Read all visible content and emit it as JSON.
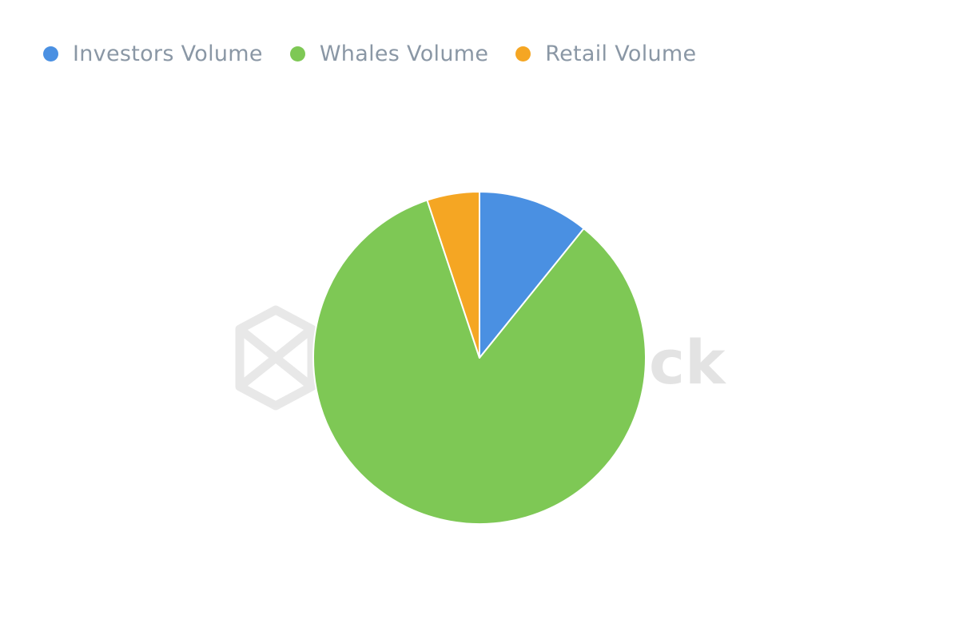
{
  "chart_data": {
    "type": "pie",
    "categories": [
      "Investors Volume",
      "Whales Volume",
      "Retail Volume"
    ],
    "values": [
      10.8,
      84.1,
      5.1
    ],
    "unit": "%",
    "legend_placement": "top-left",
    "colors": [
      "#4a90e2",
      "#7ec855",
      "#f5a623"
    ],
    "watermark_text": "ck"
  }
}
